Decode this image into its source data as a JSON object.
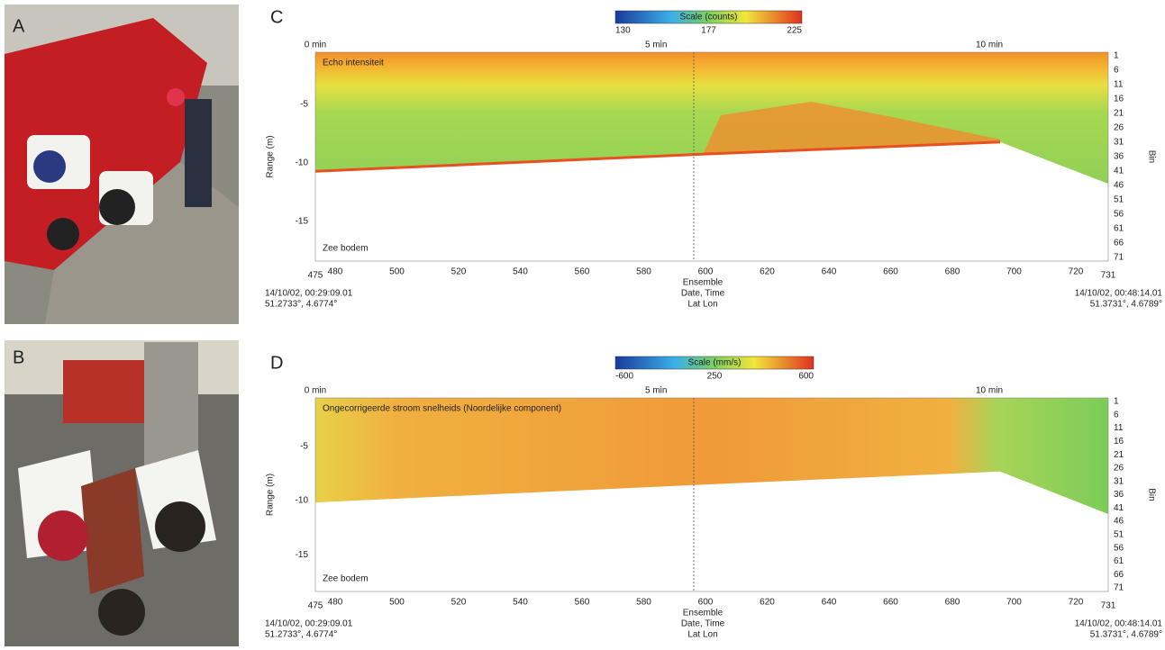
{
  "photo_labels": [
    "A",
    "B"
  ],
  "plots": [
    {
      "label": "C",
      "colorbar_title": "Scale (counts)",
      "colorbar_ticks": [
        "130",
        "177",
        "225"
      ],
      "time_ticks": [
        "0 min",
        "5 min",
        "10 min"
      ],
      "series_label": "Echo intensiteit",
      "y_axis_title": "Range (m)",
      "y_ticks": [
        "-5",
        "-10",
        "-15"
      ],
      "bin_title": "Bin",
      "bin_ticks": [
        "1",
        "6",
        "11",
        "16",
        "21",
        "26",
        "31",
        "36",
        "41",
        "46",
        "51",
        "56",
        "61",
        "66",
        "71"
      ],
      "x_ticks": [
        "475",
        "480",
        "500",
        "520",
        "540",
        "560",
        "580",
        "600",
        "620",
        "640",
        "660",
        "680",
        "700",
        "720",
        "731"
      ],
      "x_axis_rows": [
        "Ensemble",
        "Date, Time",
        "Lat Lon"
      ],
      "start": [
        "14/10/02, 00:29:09.01",
        "51.2733°, 4.6774°"
      ],
      "end": [
        "14/10/02, 00:48:14.01",
        "51.3731°, 4.6789°"
      ],
      "bottom_label": "Zee bodem"
    },
    {
      "label": "D",
      "colorbar_title": "Scale (mm/s)",
      "colorbar_ticks": [
        "-600",
        "250",
        "600"
      ],
      "time_ticks": [
        "0 min",
        "5 min",
        "10 min"
      ],
      "series_label": "Ongecorrigeerde stroom snelheids (Noordelijke component)",
      "y_axis_title": "Range (m)",
      "y_ticks": [
        "-5",
        "-10",
        "-15"
      ],
      "bin_title": "Bin",
      "bin_ticks": [
        "1",
        "6",
        "11",
        "16",
        "21",
        "26",
        "31",
        "36",
        "41",
        "46",
        "51",
        "56",
        "61",
        "66",
        "71"
      ],
      "x_ticks": [
        "475",
        "480",
        "500",
        "520",
        "540",
        "560",
        "580",
        "600",
        "620",
        "640",
        "660",
        "680",
        "700",
        "720",
        "731"
      ],
      "x_axis_rows": [
        "Ensemble",
        "Date, Time",
        "Lat Lon"
      ],
      "start": [
        "14/10/02, 00:29:09.01",
        "51.2733°, 4.6774°"
      ],
      "end": [
        "14/10/02, 00:48:14.01",
        "51.3731°, 4.6789°"
      ],
      "bottom_label": "Zee bodem"
    }
  ]
}
